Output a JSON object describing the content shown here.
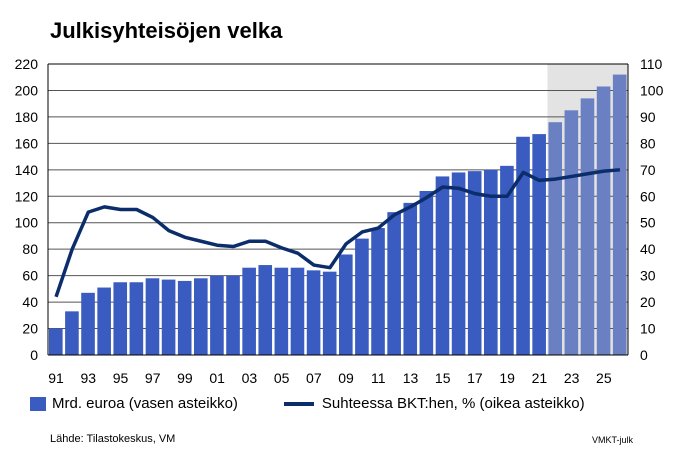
{
  "chart_data": {
    "type": "bar+line",
    "title": "Julkisyhteisöjen velka",
    "categories": [
      "91",
      "92",
      "93",
      "94",
      "95",
      "96",
      "97",
      "98",
      "99",
      "00",
      "01",
      "02",
      "03",
      "04",
      "05",
      "06",
      "07",
      "08",
      "09",
      "10",
      "11",
      "12",
      "13",
      "14",
      "15",
      "16",
      "17",
      "18",
      "19",
      "20",
      "21",
      "22",
      "23",
      "24",
      "25",
      "26"
    ],
    "x_tick_labels": [
      "91",
      "93",
      "95",
      "97",
      "99",
      "01",
      "03",
      "05",
      "07",
      "09",
      "11",
      "13",
      "15",
      "17",
      "19",
      "21",
      "23",
      "25"
    ],
    "forecast_from": "22",
    "series": [
      {
        "name": "Mrd. euroa (vasen asteikko)",
        "type": "bar",
        "axis": "left",
        "color": "#3a5bbf",
        "forecast_color": "#6b80c2",
        "values": [
          20,
          33,
          47,
          51,
          55,
          55,
          58,
          57,
          56,
          58,
          60,
          60,
          66,
          68,
          66,
          66,
          64,
          63,
          76,
          88,
          96,
          108,
          115,
          124,
          135,
          138,
          139,
          140,
          143,
          165,
          167,
          176,
          185,
          194,
          203,
          212
        ]
      },
      {
        "name": "Suhteessa BKT:hen, % (oikea asteikko)",
        "type": "line",
        "axis": "right",
        "color": "#0b2d6b",
        "values": [
          22,
          40,
          54,
          56,
          55,
          55,
          52,
          47,
          44.5,
          43,
          41.5,
          41,
          43,
          43,
          40.5,
          38.5,
          34,
          33,
          42,
          46.5,
          48,
          53,
          56,
          59.5,
          63.5,
          63,
          61,
          60,
          60,
          69,
          66,
          66.5,
          67.5,
          68.5,
          69.5,
          70
        ]
      }
    ],
    "left_axis": {
      "range": [
        0,
        220
      ],
      "ticks": [
        0,
        20,
        40,
        60,
        80,
        100,
        120,
        140,
        160,
        180,
        200,
        220
      ]
    },
    "right_axis": {
      "range": [
        0,
        110
      ],
      "ticks": [
        0,
        10,
        20,
        30,
        40,
        50,
        60,
        70,
        80,
        90,
        100,
        110
      ]
    },
    "grid": true,
    "legend": "bottom"
  },
  "source": "Lähde: Tilastokeskus, VM",
  "code": "VMKT-julk"
}
